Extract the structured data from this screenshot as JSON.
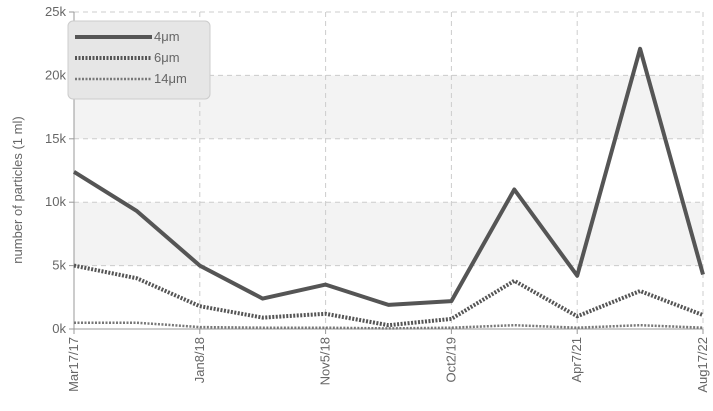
{
  "chart_data": {
    "type": "line",
    "title": "",
    "xlabel": "",
    "ylabel": "number of particles (1 ml)",
    "ylim": [
      0,
      25000
    ],
    "y_ticks": [
      0,
      5000,
      10000,
      15000,
      20000,
      25000
    ],
    "y_tick_labels": [
      "0k",
      "5k",
      "10k",
      "15k",
      "20k",
      "25k"
    ],
    "x_tick_labels": [
      "Mar17/17",
      "Jan8/18",
      "Nov5/18",
      "Oct2/19",
      "Apr7/21",
      "Aug17/22"
    ],
    "x_tick_indices": [
      0,
      2,
      4,
      6,
      8,
      10
    ],
    "num_points": 11,
    "grid": true,
    "legend_position": "top-left",
    "series": [
      {
        "name": "4μm",
        "values": [
          12400,
          9300,
          5000,
          2400,
          3500,
          1900,
          2200,
          11000,
          4200,
          22100,
          4300
        ],
        "color": "#555555",
        "style": "solid"
      },
      {
        "name": "6μm",
        "values": [
          5000,
          4000,
          1800,
          900,
          1200,
          300,
          800,
          3800,
          1000,
          3000,
          1100
        ],
        "color": "#555555",
        "style": "dotted-thick"
      },
      {
        "name": "14μm",
        "values": [
          500,
          500,
          150,
          100,
          100,
          50,
          100,
          300,
          100,
          300,
          100
        ],
        "color": "#777777",
        "style": "dotted-thin"
      }
    ]
  }
}
